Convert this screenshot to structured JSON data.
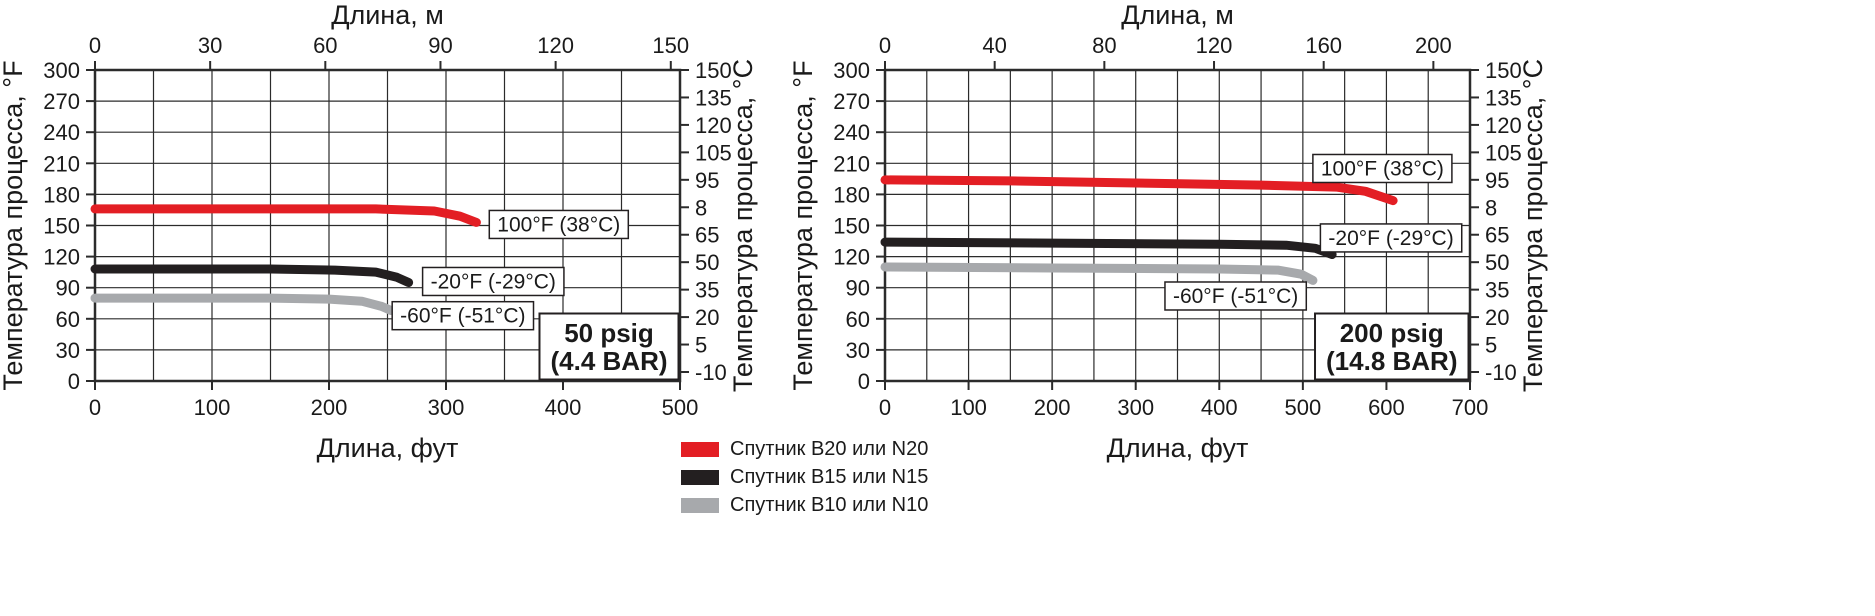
{
  "colors": {
    "red": "#e31e24",
    "black": "#231f20",
    "gray": "#a7a9ac",
    "grid": "#2b2b2b",
    "text": "#1a1a1a",
    "annotation_border": "#231f20",
    "background": "#ffffff"
  },
  "legend": {
    "items": [
      {
        "label": "Спутник B20 или N20",
        "color_key": "red"
      },
      {
        "label": "Спутник B15 или N15",
        "color_key": "black"
      },
      {
        "label": "Спутник B10 или N10",
        "color_key": "gray"
      }
    ]
  },
  "chart_data": [
    {
      "type": "line",
      "pressure_label_lines": [
        "50 psig",
        "(4.4 BAR)"
      ],
      "top_axis": {
        "label": "Длина, м",
        "ticks": [
          0,
          30,
          60,
          90,
          120,
          150
        ]
      },
      "bottom_axis": {
        "label": "Длина, фут",
        "ticks": [
          0,
          100,
          200,
          300,
          400,
          500
        ],
        "range": [
          0,
          500
        ],
        "grid_step": 50
      },
      "left_axis": {
        "label": "Температура процесса, °F",
        "ticks": [
          300,
          270,
          240,
          210,
          180,
          150,
          120,
          90,
          60,
          30,
          0
        ],
        "range": [
          0,
          300
        ],
        "grid_step": 30
      },
      "right_axis": {
        "label": "Температура процесса, °C",
        "ticks": [
          "150",
          "135",
          "120",
          "105",
          "95",
          "8",
          "65",
          "50",
          "35",
          "20",
          "5",
          "-10"
        ]
      },
      "series": [
        {
          "name": "100°F (38°C)",
          "color_key": "red",
          "points_ft_degF": [
            [
              0,
              166
            ],
            [
              120,
              166
            ],
            [
              240,
              166
            ],
            [
              290,
              164
            ],
            [
              312,
              159
            ],
            [
              326,
              153
            ]
          ]
        },
        {
          "name": "-20°F (-29°C)",
          "color_key": "black",
          "points_ft_degF": [
            [
              0,
              108
            ],
            [
              150,
              108
            ],
            [
              205,
              107
            ],
            [
              240,
              105
            ],
            [
              258,
              100
            ],
            [
              268,
              95
            ]
          ]
        },
        {
          "name": "-60°F (-51°C)",
          "color_key": "gray",
          "points_ft_degF": [
            [
              0,
              80
            ],
            [
              150,
              80
            ],
            [
              200,
              79
            ],
            [
              228,
              77
            ],
            [
              245,
              72
            ],
            [
              253,
              68
            ]
          ]
        }
      ],
      "annotations": [
        {
          "text": "100°F (38°C)",
          "x_ft": 337,
          "y_degF": 151
        },
        {
          "text": "-20°F (-29°C)",
          "x_ft": 280,
          "y_degF": 96
        },
        {
          "text": "-60°F (-51°C)",
          "x_ft": 254,
          "y_degF": 63
        }
      ]
    },
    {
      "type": "line",
      "pressure_label_lines": [
        "200 psig",
        "(14.8 BAR)"
      ],
      "top_axis": {
        "label": "Длина, м",
        "ticks": [
          0,
          40,
          80,
          120,
          160,
          200
        ]
      },
      "bottom_axis": {
        "label": "Длина, фут",
        "ticks": [
          0,
          100,
          200,
          300,
          400,
          500,
          600,
          700
        ],
        "range": [
          0,
          700
        ],
        "grid_step": 50
      },
      "left_axis": {
        "label": "Температура процесса, °F",
        "ticks": [
          300,
          270,
          240,
          210,
          180,
          150,
          120,
          90,
          60,
          30,
          0
        ],
        "range": [
          0,
          300
        ],
        "grid_step": 30
      },
      "right_axis": {
        "label": "Температура процесса, °C",
        "ticks": [
          "150",
          "135",
          "120",
          "105",
          "95",
          "8",
          "65",
          "50",
          "35",
          "20",
          "5",
          "-10"
        ]
      },
      "series": [
        {
          "name": "100°F (38°C)",
          "color_key": "red",
          "points_ft_degF": [
            [
              0,
              194
            ],
            [
              150,
              193
            ],
            [
              300,
              191
            ],
            [
              450,
              189
            ],
            [
              540,
              187
            ],
            [
              575,
              183
            ],
            [
              608,
              174
            ]
          ]
        },
        {
          "name": "-20°F (-29°C)",
          "color_key": "black",
          "points_ft_degF": [
            [
              0,
              134
            ],
            [
              200,
              133
            ],
            [
              400,
              132
            ],
            [
              480,
              131
            ],
            [
              515,
              128
            ],
            [
              535,
              122
            ]
          ]
        },
        {
          "name": "-60°F (-51°C)",
          "color_key": "gray",
          "points_ft_degF": [
            [
              0,
              110
            ],
            [
              200,
              109
            ],
            [
              400,
              108
            ],
            [
              470,
              107
            ],
            [
              498,
              103
            ],
            [
              512,
              97
            ]
          ]
        }
      ],
      "annotations": [
        {
          "text": "100°F (38°C)",
          "x_ft": 512,
          "y_degF": 205
        },
        {
          "text": "-20°F (-29°C)",
          "x_ft": 521,
          "y_degF": 138
        },
        {
          "text": "-60°F (-51°C)",
          "x_ft": 335,
          "y_degF": 82
        }
      ]
    }
  ]
}
